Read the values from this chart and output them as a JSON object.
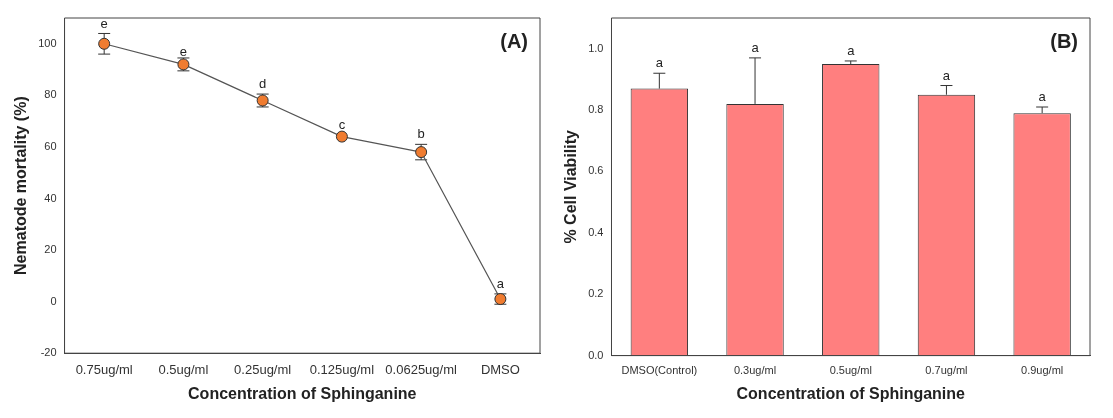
{
  "chart_data": [
    {
      "type": "line",
      "xlabel": "Concentration of Sphinganine",
      "ylabel": "Nematode mortality (%)",
      "categories": [
        "0.75ug/ml",
        "0.5ug/ml",
        "0.25ug/ml",
        "0.125ug/ml",
        "0.0625ug/ml",
        "DMSO"
      ],
      "series": [
        {
          "color": "#f07c30",
          "values": [
            100,
            92,
            78,
            64,
            58,
            1
          ],
          "errors": [
            4,
            2.5,
            2.5,
            null,
            3,
            2
          ]
        }
      ],
      "ylim": [
        -20,
        110
      ],
      "yticks": [
        -20,
        0,
        20,
        40,
        60,
        80,
        100
      ],
      "marker": "circle",
      "line_style": "solid",
      "grid": false,
      "legend": false,
      "annotations": [
        "(A)",
        {
          "text": "e",
          "x": "0.75ug/ml",
          "y": 104
        },
        {
          "text": "e",
          "x": "0.5ug/ml",
          "y": 93
        },
        {
          "text": "d",
          "x": "0.25ug/ml",
          "y": 80.5
        },
        {
          "text": "c",
          "x": "0.125ug/ml",
          "y": 64.5
        },
        {
          "text": "b",
          "x": "0.0625ug/ml",
          "y": 61
        },
        {
          "text": "a",
          "x": "DMSO",
          "y": 3
        }
      ]
    },
    {
      "type": "bar",
      "xlabel": "Concentration of Sphinganine",
      "ylabel": "% Cell Viability",
      "categories": [
        "DMSO(Control)",
        "0.3ug/ml",
        "0.5ug/ml",
        "0.7ug/ml",
        "0.9ug/ml"
      ],
      "series": [
        {
          "color": "#ff7f7f",
          "values": [
            0.87,
            0.82,
            0.95,
            0.85,
            0.79
          ],
          "errors": [
            [
              0.87,
              0.92
            ],
            [
              0.82,
              0.97
            ],
            [
              0.95,
              0.96
            ],
            [
              0.85,
              0.88
            ],
            [
              0.79,
              0.81
            ]
          ]
        }
      ],
      "ylim": [
        0,
        1.1
      ],
      "yticks": [
        {
          "value": 0,
          "label": "0.0"
        },
        0.2,
        0.4,
        0.6,
        0.8,
        {
          "value": 1,
          "label": "1.0"
        }
      ],
      "grid": false,
      "legend": false,
      "annotations": [
        "(B)",
        {
          "text": "a",
          "x": "DMSO(Control)",
          "y": 0.92
        },
        {
          "text": "a",
          "x": "0.3ug/ml",
          "y": 0.97
        },
        {
          "text": "a",
          "x": "0.5ug/ml",
          "y": 0.96
        },
        {
          "text": "a",
          "x": "0.7ug/ml",
          "y": 0.88
        },
        {
          "text": "a",
          "x": "0.9ug/ml",
          "y": 0.81
        }
      ]
    }
  ]
}
